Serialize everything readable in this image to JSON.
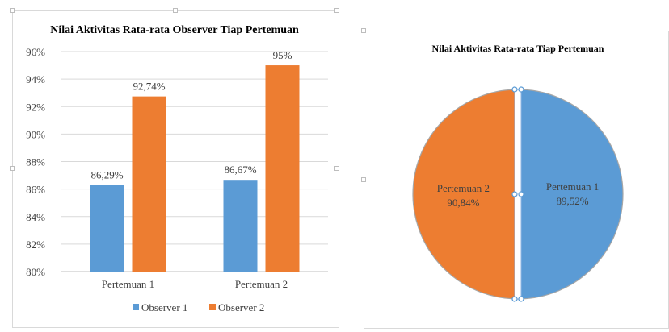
{
  "colors": {
    "observer1": "#5b9bd5",
    "observer2": "#ed7d31",
    "grid": "#d9d9d9",
    "axis": "#bfbfbf",
    "text": "#404040",
    "title": "#000000"
  },
  "chart_data": [
    {
      "type": "bar",
      "title": "Nilai Aktivitas Rata-rata Observer Tiap Pertemuan",
      "categories": [
        "Pertemuan 1",
        "Pertemuan 2"
      ],
      "series": [
        {
          "name": "Observer 1",
          "values": [
            86.29,
            86.67
          ],
          "labels": [
            "86,29%",
            "86,67%"
          ]
        },
        {
          "name": "Observer 2",
          "values": [
            92.74,
            95.0
          ],
          "labels": [
            "92,74%",
            "95%"
          ]
        }
      ],
      "ylim": [
        80,
        96
      ],
      "yticks": [
        80,
        82,
        84,
        86,
        88,
        90,
        92,
        94,
        96
      ],
      "ytick_labels": [
        "80%",
        "82%",
        "84%",
        "86%",
        "88%",
        "90%",
        "92%",
        "94%",
        "96%"
      ],
      "grid": true,
      "legend": "bottom"
    },
    {
      "type": "pie",
      "title": "Nilai Aktivitas Rata-rata Tiap Pertemuan",
      "slices": [
        {
          "name": "Pertemuan 1",
          "value": 89.52,
          "label": "89,52%"
        },
        {
          "name": "Pertemuan 2",
          "value": 90.84,
          "label": "90,84%"
        }
      ],
      "legend": "none"
    }
  ]
}
